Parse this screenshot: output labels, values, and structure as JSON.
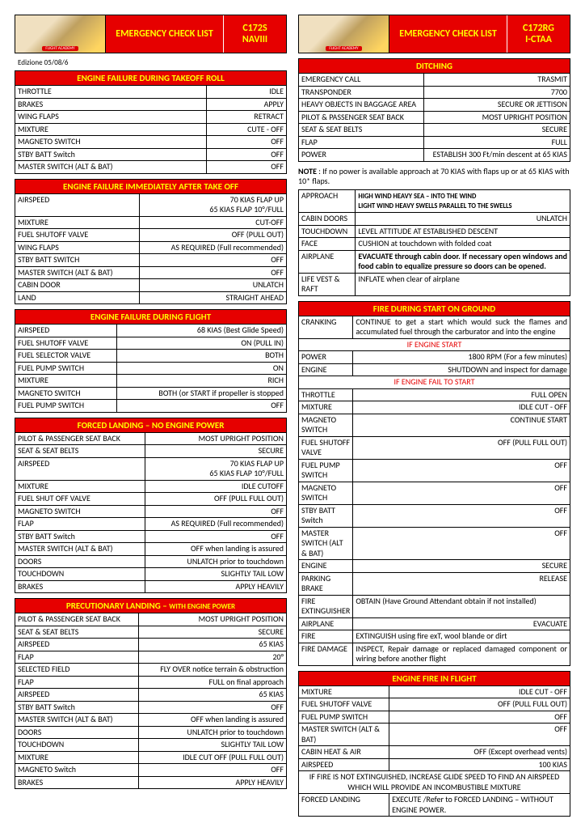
{
  "left": {
    "header": {
      "title": "EMERGENCY CHECK LIST",
      "model": "C172S",
      "reg": "NAVIII"
    },
    "edition": "Edizione 05/08/6",
    "s1": {
      "title": "ENGINE FAILURE DURING TAKEOFF ROLL",
      "rows": [
        [
          "THROTTLE",
          "IDLE"
        ],
        [
          "BRAKES",
          "APPLY"
        ],
        [
          "WING FLAPS",
          "RETRACT"
        ],
        [
          "MIXTURE",
          "CUTE - OFF"
        ],
        [
          "MAGNETO SWITCH",
          "OFF"
        ],
        [
          "STBY BATT Switch",
          "OFF"
        ],
        [
          "MASTER SWITCH (ALT & BAT)",
          "OFF"
        ]
      ]
    },
    "s2": {
      "title": "ENGINE FAILURE IMMEDIATELY AFTER TAKE OFF",
      "rows": [
        [
          "AIRSPEED",
          "70 KIAS FLAP UP\n65 KIAS FLAP 10°/FULL"
        ],
        [
          "MIXTURE",
          "CUT-OFF"
        ],
        [
          "FUEL SHUTOFF VALVE",
          "OFF (PULL OUT)"
        ],
        [
          "WING FLAPS",
          "AS REQUIRED (Full recommended)"
        ],
        [
          "STBY BATT SWITCH",
          "OFF"
        ],
        [
          "MASTER SWITCH (ALT & BAT)",
          "OFF"
        ],
        [
          "CABIN DOOR",
          "UNLATCH"
        ],
        [
          "LAND",
          "STRAIGHT AHEAD"
        ]
      ]
    },
    "s3": {
      "title": "ENGINE FAILURE DURING FLIGHT",
      "rows": [
        [
          "AIRSPEED",
          "68 KIAS (Best Glide Speed)"
        ],
        [
          "FUEL SHUTOFF VALVE",
          "ON (PULL IN)"
        ],
        [
          "FUEL SELECTOR VALVE",
          "BOTH"
        ],
        [
          "FUEL PUMP SWITCH",
          "ON"
        ],
        [
          "MIXTURE",
          "RICH"
        ],
        [
          "MAGNETO SWITCH",
          "BOTH (or START if propeller is stopped"
        ],
        [
          "FUEL PUMP SWITCH",
          "OFF"
        ]
      ]
    },
    "s4": {
      "title": "FORCED LANDING – NO ENGINE POWER",
      "rows": [
        [
          "PILOT & PASSENGER SEAT BACK",
          "MOST UPRIGHT POSITION"
        ],
        [
          "SEAT & SEAT BELTS",
          "SECURE"
        ],
        [
          "AIRSPEED",
          "70 KIAS FLAP UP\n65 KIAS FLAP 10°/FULL"
        ],
        [
          "MIXTURE",
          "IDLE CUTOFF"
        ],
        [
          "FUEL SHUT OFF VALVE",
          "OFF (PULL FULL OUT)"
        ],
        [
          "MAGNETO SWITCH",
          "OFF"
        ],
        [
          "FLAP",
          "AS REQUIRED (Full recommended)"
        ],
        [
          "STBY BATT Switch",
          "OFF"
        ],
        [
          "MASTER SWITCH (ALT & BAT)",
          "OFF when landing is assured"
        ],
        [
          "DOORS",
          "UNLATCH prior to touchdown"
        ],
        [
          "TOUCHDOWN",
          "SLIGHTLY TAIL LOW"
        ],
        [
          "BRAKES",
          "APPLY HEAVILY"
        ]
      ]
    },
    "s5": {
      "title": "PRECUTIONARY LANDING – ",
      "title_sub": "WITH ENGINE POWER",
      "rows": [
        [
          "PILOT & PASSENGER SEAT BACK",
          "MOST UPRIGHT POSITION"
        ],
        [
          "SEAT & SEAT BELTS",
          "SECURE"
        ],
        [
          "AIRSPEED",
          "65 KIAS"
        ],
        [
          "FLAP",
          "20°"
        ],
        [
          "SELECTED FIELD",
          "FLY OVER notice terrain & obstruction"
        ],
        [
          "FLAP",
          "FULL on final approach"
        ],
        [
          "AIRSPEED",
          "65 KIAS"
        ],
        [
          "STBY BATT Switch",
          "OFF"
        ],
        [
          "MASTER SWITCH (ALT & BAT)",
          "OFF when landing is assured"
        ],
        [
          "DOORS",
          "UNLATCH prior to touchdown"
        ],
        [
          "TOUCHDOWN",
          "SLIGHTLY TAIL LOW"
        ],
        [
          "MIXTURE",
          "IDLE CUT OFF (PULL FULL OUT)"
        ],
        [
          "MAGNETO Switch",
          "OFF"
        ],
        [
          "BRAKES",
          "APPLY HEAVILY"
        ]
      ]
    }
  },
  "right": {
    "header": {
      "title": "EMERGENCY CHECK LIST",
      "model": "C172RG",
      "reg": "I-CTAA"
    },
    "d1": {
      "title": "DITCHING",
      "rows": [
        [
          "EMERGENCY CALL",
          "TRASMIT"
        ],
        [
          "TRANSPONDER",
          "7700"
        ],
        [
          "HEAVY OBJECTS IN BAGGAGE AREA",
          "SECURE OR JETTISON"
        ],
        [
          "PILOT & PASSENGER SEAT BACK",
          "MOST UPRIGHT POSITION"
        ],
        [
          "SEAT & SEAT BELTS",
          "SECURE"
        ],
        [
          "FLAP",
          "FULL"
        ],
        [
          "POWER",
          "ESTABLISH 300 Ft/min descent at 65 KIAS"
        ]
      ]
    },
    "note1_a": "NOTE",
    "note1_b": " : If no power is available approach at 70 KIAS with flaps up or at 65 KIAS with 10* flaps.",
    "d2": {
      "rows": [
        [
          "APPROACH",
          "HIGH WIND HEAVY SEA – INTO THE WIND\nLIGHT WIND HEAVY SWELLS  PARALLEL TO THE SWELLS"
        ],
        [
          "CABIN DOORS",
          "UNLATCH"
        ],
        [
          "TOUCHDOWN",
          "LEVEL ATTITUDE AT ESTABLISHED DESCENT"
        ],
        [
          "FACE",
          "CUSHION at touchdown with folded coat"
        ],
        [
          "AIRPLANE",
          "EVACUATE through cabin door. If necessary open windows and food cabin to equalize pressure so doors can be opened."
        ],
        [
          "LIFE VEST & RAFT",
          "INFLATE when clear of airplane"
        ]
      ]
    },
    "f1": {
      "title": "FIRE DURING START ON GROUND",
      "cranking": [
        "CRANKING",
        "CONTINUE to get a start which would suck the flames and accumulated fuel through the carburator and into the engine"
      ],
      "if_start": "IF ENGINE START",
      "r_start": [
        [
          "POWER",
          "1800 RPM (For a few minutes)"
        ],
        [
          "ENGINE",
          "SHUTDOWN and inspect for damage"
        ]
      ],
      "if_fail": "IF ENGINE FAIL TO START",
      "r_fail": [
        [
          "THROTTLE",
          "FULL OPEN"
        ],
        [
          "MIXTURE",
          "IDLE CUT - OFF"
        ],
        [
          "MAGNETO SWITCH",
          "CONTINUE START"
        ],
        [
          "FUEL SHUTOFF VALVE",
          "OFF (PULL FULL OUT)"
        ],
        [
          "FUEL PUMP SWITCH",
          "OFF"
        ],
        [
          "MAGNETO SWITCH",
          "OFF"
        ],
        [
          "STBY BATT Switch",
          "OFF"
        ],
        [
          "MASTER SWITCH (ALT & BAT)",
          "OFF"
        ],
        [
          "ENGINE",
          "SECURE"
        ],
        [
          "PARKING BRAKE",
          "RELEASE"
        ],
        [
          "FIRE EXTINGUISHER",
          "OBTAIN (Have Ground Attendant obtain if not installed)"
        ],
        [
          "AIRPLANE",
          "EVACUATE"
        ]
      ],
      "fire": [
        "FIRE",
        "EXTINGUISH using fire exT, wool blande or dirt"
      ],
      "dmg": [
        "FIRE DAMAGE",
        "INSPECT, Repair damage or replaced damaged component or wiring before another flight"
      ]
    },
    "ef": {
      "title": "ENGINE FIRE IN FLIGHT",
      "rows": [
        [
          "MIXTURE",
          "IDLE CUT - OFF"
        ],
        [
          "FUEL SHUTOFF VALVE",
          "OFF (PULL FULL OUT)"
        ],
        [
          "FUEL PUMP SWITCH",
          "OFF"
        ],
        [
          "MASTER SWITCH (ALT & BAT)",
          "OFF"
        ],
        [
          "CABIN HEAT & AIR",
          "OFF (Except overhead vents)"
        ],
        [
          "AIRSPEED",
          "100 KIAS"
        ]
      ],
      "note": "IF FIRE IS NOT EXTINGUISHED, INCREASE GLIDE SPEED TO FIND AN AIRSPEED WHICH WILL PROVIDE AN INCOMBUSTIBLE MIXTURE",
      "fl": [
        "FORCED LANDING",
        "EXECUTE /Refer to FORCED LANDING – WITHOUT ENGINE POWER."
      ]
    }
  }
}
